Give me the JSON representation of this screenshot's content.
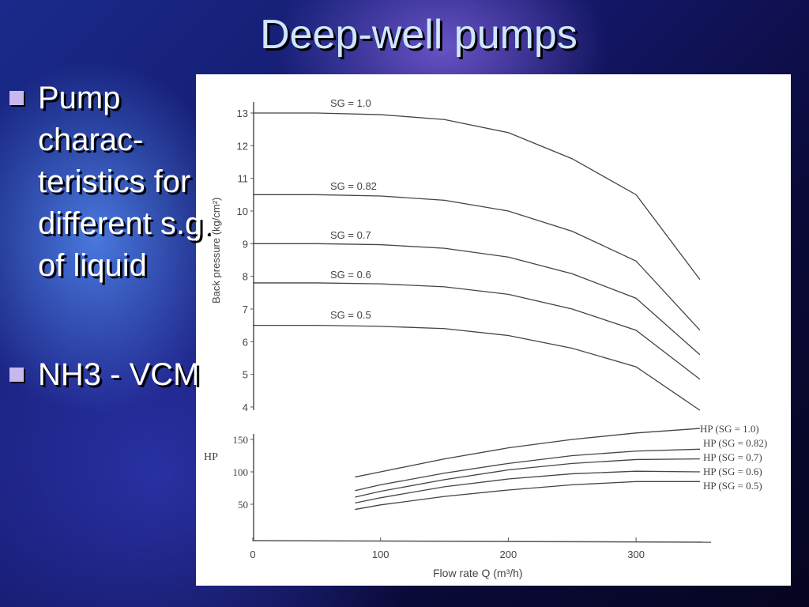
{
  "slide": {
    "title": "Deep-well pumps",
    "bullets": [
      {
        "text": "Pump\ncharac-\nteristics for\ndifferent s.g.\nof liquid",
        "icon": "square-bullet-icon"
      },
      {
        "text": "NH3 - VCM",
        "icon": "square-bullet-icon"
      }
    ],
    "colors": {
      "title": "#cfe6ff",
      "bullet": "#c9b8f0",
      "background": "#14186a"
    }
  },
  "chart_data": [
    {
      "type": "line",
      "xlabel": "Flow rate Q (m³/h)",
      "ylabel": "Back pressure (kg/cm²)",
      "ylim": [
        4,
        13
      ],
      "yticks": [
        "4",
        "5",
        "6",
        "7",
        "8",
        "9",
        "10",
        "11",
        "12",
        "13"
      ],
      "x": [
        0,
        50,
        100,
        150,
        200,
        250,
        300,
        350
      ],
      "series": [
        {
          "name": "SG = 1.0",
          "values": [
            13.0,
            13.0,
            12.95,
            12.8,
            12.4,
            11.6,
            10.5,
            7.9
          ]
        },
        {
          "name": "SG = 0.82",
          "values": [
            10.5,
            10.5,
            10.46,
            10.33,
            10.0,
            9.38,
            8.47,
            6.35
          ]
        },
        {
          "name": "SG = 0.7",
          "values": [
            9.0,
            9.0,
            8.97,
            8.86,
            8.59,
            8.08,
            7.33,
            5.6
          ]
        },
        {
          "name": "SG = 0.6",
          "values": [
            7.8,
            7.8,
            7.77,
            7.68,
            7.45,
            7.0,
            6.35,
            4.85
          ]
        },
        {
          "name": "SG = 0.5",
          "values": [
            6.5,
            6.5,
            6.47,
            6.4,
            6.19,
            5.8,
            5.23,
            3.9
          ]
        }
      ],
      "grid": false
    },
    {
      "type": "line",
      "xlabel": "Flow rate Q (m³/h)",
      "ylabel": "HP",
      "xlim": [
        0,
        350
      ],
      "xticks": [
        "0",
        "100",
        "200",
        "300"
      ],
      "yticks": [
        "50",
        "100",
        "150"
      ],
      "x": [
        80,
        100,
        150,
        200,
        250,
        300,
        350
      ],
      "series": [
        {
          "name": "HP (SG = 1.0)",
          "values": [
            92,
            100,
            120,
            137,
            150,
            160,
            167
          ]
        },
        {
          "name": "HP (SG = 0.82)",
          "values": [
            71,
            80,
            98,
            113,
            125,
            132,
            135
          ]
        },
        {
          "name": "HP (SG = 0.7)",
          "values": [
            61,
            70,
            88,
            103,
            113,
            119,
            120
          ]
        },
        {
          "name": "HP (SG = 0.6)",
          "values": [
            52,
            60,
            77,
            89,
            97,
            101,
            100
          ]
        },
        {
          "name": "HP (SG = 0.5)",
          "values": [
            42,
            49,
            62,
            72,
            80,
            85,
            85
          ]
        }
      ],
      "grid": false
    }
  ]
}
